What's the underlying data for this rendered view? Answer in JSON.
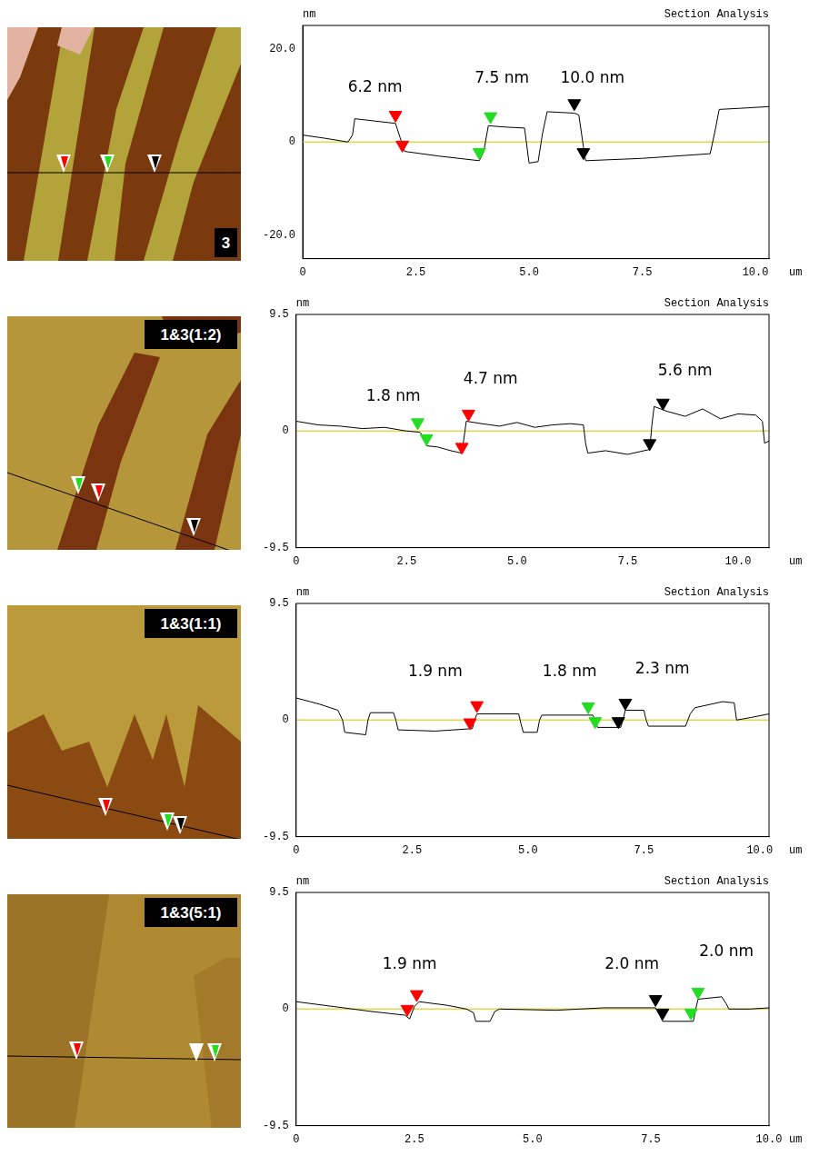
{
  "chart_data": [
    {
      "type": "line",
      "image_label": "3",
      "header": "Section Analysis",
      "y_unit": "nm",
      "x_unit": "um",
      "xlim": [
        0,
        10.3
      ],
      "xticks": [
        0,
        2.5,
        {
          "value": 5,
          "label": "5.0"
        },
        7.5,
        {
          "value": 10,
          "label": "10.0"
        }
      ],
      "ylim": [
        -25,
        25
      ],
      "yticks": [
        {
          "value": -20,
          "label": "-20.0"
        },
        0,
        {
          "value": 20,
          "label": "20.0"
        }
      ],
      "reference_line": 0,
      "grid": false,
      "color": "#000000",
      "x": [
        0,
        0.5,
        1.0,
        1.1,
        1.15,
        1.6,
        2.05,
        2.15,
        2.25,
        3.0,
        3.9,
        4.0,
        4.1,
        4.5,
        4.9,
        5.0,
        5.2,
        5.3,
        5.4,
        6.0,
        6.1,
        6.2,
        6.25,
        7.5,
        9.0,
        9.1,
        9.2,
        9.6,
        10.3
      ],
      "values": [
        1.5,
        0.8,
        0,
        1.5,
        5,
        4.5,
        4,
        1,
        -2,
        -3,
        -4,
        -2,
        3.5,
        3.2,
        3,
        -4.5,
        -4.2,
        2,
        6.5,
        6.2,
        5.8,
        -1,
        -4,
        -3.5,
        -2.5,
        2,
        7,
        7.2,
        7.6
      ],
      "annotations": [
        {
          "text": "6.2 nm",
          "x": 1.6,
          "y": 10,
          "color": "#ff0000",
          "markers": [
            [
              2.05,
              5.8
            ],
            [
              2.2,
              -0.6
            ]
          ]
        },
        {
          "text": "7.5 nm",
          "x": 4.4,
          "y": 12,
          "color": "#22dd22",
          "markers": [
            [
              3.9,
              -2.2
            ],
            [
              4.15,
              5.5
            ]
          ]
        },
        {
          "text": "10.0 nm",
          "x": 6.4,
          "y": 12,
          "color": "#000000",
          "markers": [
            [
              6.0,
              8.3
            ],
            [
              6.2,
              -2.2
            ]
          ]
        }
      ]
    },
    {
      "type": "line",
      "image_label": "1&3(1:2)",
      "header": "Section Analysis",
      "y_unit": "nm",
      "x_unit": "um",
      "xlim": [
        0,
        10.7
      ],
      "xticks": [
        0,
        2.5,
        {
          "value": 5,
          "label": "5.0"
        },
        7.5,
        {
          "value": 10,
          "label": "10.0"
        }
      ],
      "ylim": [
        -9.5,
        9.5
      ],
      "yticks": [
        -9.5,
        0,
        9.5
      ],
      "reference_line": 0,
      "grid": false,
      "color": "#000000",
      "x": [
        0,
        0.5,
        1.0,
        1.5,
        2.0,
        2.5,
        2.8,
        2.9,
        2.95,
        3.2,
        3.5,
        3.75,
        3.8,
        3.85,
        4.2,
        4.6,
        5.0,
        5.4,
        5.8,
        6.2,
        6.5,
        6.55,
        6.6,
        7.0,
        7.5,
        8.0,
        8.05,
        8.1,
        8.4,
        8.8,
        9.2,
        9.6,
        10.0,
        10.4,
        10.55,
        10.6,
        10.7
      ],
      "values": [
        0.8,
        0.5,
        0.4,
        0.2,
        0.3,
        0,
        -0.1,
        -0.5,
        -1.2,
        -1.3,
        -1.6,
        -1.8,
        -0.5,
        0.8,
        0.6,
        0.4,
        0.7,
        0.3,
        0.5,
        0.6,
        0.5,
        -1.0,
        -1.8,
        -1.6,
        -1.9,
        -1.5,
        0.5,
        2.0,
        1.6,
        1.2,
        1.8,
        1.0,
        1.4,
        1.3,
        0.8,
        -1.0,
        -0.8
      ],
      "annotations": [
        {
          "text": "1.8 nm",
          "x": 2.2,
          "y": 2.2,
          "color": "#22dd22",
          "markers": [
            [
              2.75,
              0.7
            ],
            [
              2.95,
              -0.6
            ]
          ]
        },
        {
          "text": "4.7 nm",
          "x": 4.4,
          "y": 3.6,
          "color": "#ff0000",
          "markers": [
            [
              3.75,
              -1.3
            ],
            [
              3.9,
              1.4
            ]
          ]
        },
        {
          "text": "5.6 nm",
          "x": 8.8,
          "y": 4.2,
          "color": "#000000",
          "markers": [
            [
              8.0,
              -1.0
            ],
            [
              8.3,
              2.3
            ]
          ]
        }
      ]
    },
    {
      "type": "line",
      "image_label": "1&3(1:1)",
      "header": "Section Analysis",
      "y_unit": "nm",
      "x_unit": "um",
      "xlim": [
        0,
        10.2
      ],
      "xticks": [
        0,
        2.5,
        {
          "value": 5,
          "label": "5.0"
        },
        7.5,
        {
          "value": 10,
          "label": "10.0"
        }
      ],
      "ylim": [
        -9.5,
        9.5
      ],
      "yticks": [
        -9.5,
        0,
        9.5
      ],
      "reference_line": 0,
      "grid": false,
      "color": "#000000",
      "x": [
        0,
        0.5,
        0.9,
        1.0,
        1.05,
        1.5,
        1.55,
        1.6,
        2.1,
        2.15,
        2.2,
        3.0,
        3.8,
        3.85,
        3.9,
        4.8,
        4.85,
        4.9,
        5.2,
        5.25,
        5.3,
        6.4,
        6.45,
        6.5,
        7.0,
        7.05,
        7.1,
        7.5,
        7.55,
        7.6,
        8.4,
        8.5,
        8.6,
        9.2,
        9.45,
        9.5,
        9.8,
        10.2
      ],
      "values": [
        1.8,
        1.3,
        0.8,
        0,
        -1.0,
        -1.2,
        0,
        0.6,
        0.6,
        0,
        -0.8,
        -0.9,
        -0.7,
        0,
        0.5,
        0.5,
        -0.3,
        -1.0,
        -1.0,
        0,
        0.4,
        0.4,
        0,
        -0.6,
        -0.6,
        0,
        0.8,
        0.8,
        0,
        -0.5,
        -0.5,
        0.5,
        1.0,
        1.5,
        1.4,
        0,
        0.2,
        0.5
      ],
      "annotations": [
        {
          "text": "1.9 nm",
          "x": 3.0,
          "y": 3.3,
          "color": "#ff0000",
          "markers": [
            [
              3.75,
              -0.2
            ],
            [
              3.9,
              1.2
            ]
          ]
        },
        {
          "text": "1.8 nm",
          "x": 5.9,
          "y": 3.3,
          "color": "#22dd22",
          "markers": [
            [
              6.3,
              1.1
            ],
            [
              6.45,
              -0.1
            ]
          ]
        },
        {
          "text": "2.3 nm",
          "x": 7.9,
          "y": 3.5,
          "color": "#000000",
          "markers": [
            [
              6.95,
              -0.1
            ],
            [
              7.1,
              1.4
            ]
          ]
        }
      ]
    },
    {
      "type": "line",
      "image_label": "1&3(5:1)",
      "header": "Section Analysis",
      "y_unit": "nm",
      "x_unit": "um",
      "xlim": [
        0,
        10
      ],
      "xticks": [
        0,
        2.5,
        {
          "value": 5,
          "label": "5.0"
        },
        7.5,
        {
          "value": 10,
          "label": "10.0"
        }
      ],
      "ylim": [
        -9.5,
        9.5
      ],
      "yticks": [
        -9.5,
        0,
        9.5
      ],
      "reference_line": 0,
      "grid": false,
      "color": "#000000",
      "x": [
        0,
        0.8,
        1.6,
        2.3,
        2.4,
        2.5,
        2.6,
        3.2,
        3.6,
        3.75,
        3.8,
        4.1,
        4.2,
        4.3,
        5.5,
        6.5,
        7.6,
        7.7,
        7.75,
        8.4,
        8.45,
        8.5,
        9.0,
        9.1,
        9.15,
        9.6,
        10.0
      ],
      "values": [
        0.6,
        0.2,
        -0.2,
        -0.5,
        -0.8,
        0.2,
        0.6,
        0.3,
        0,
        -0.3,
        -1.0,
        -1.0,
        -0.2,
        0,
        -0.1,
        0.1,
        0.1,
        -0.6,
        -1.0,
        -1.0,
        0,
        0.8,
        1.0,
        0.4,
        0,
        0,
        0.1
      ],
      "annotations": [
        {
          "text": "1.9 nm",
          "x": 2.4,
          "y": 3.0,
          "color": "#ff0000",
          "markers": [
            [
              2.35,
              0.0
            ],
            [
              2.55,
              1.2
            ]
          ]
        },
        {
          "text": "2.0 nm",
          "x": 7.1,
          "y": 3.0,
          "color": "#000000",
          "markers": [
            [
              7.6,
              0.8
            ],
            [
              7.75,
              -0.3
            ]
          ]
        },
        {
          "text": "2.0 nm",
          "x": 9.1,
          "y": 4.0,
          "color": "#22dd22",
          "markers": [
            [
              8.35,
              -0.3
            ],
            [
              8.5,
              1.4
            ]
          ]
        }
      ]
    }
  ]
}
